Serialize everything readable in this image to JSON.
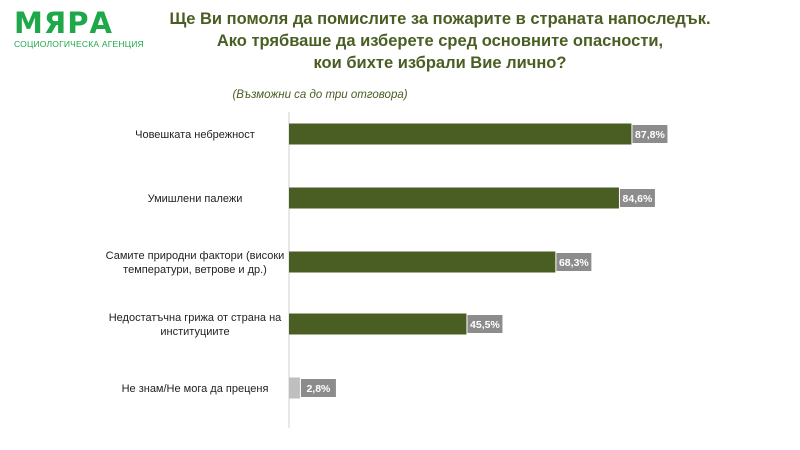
{
  "logo": {
    "word": "МЯРА",
    "tagline": "СОЦИОЛОГИЧЕСКА АГЕНЦИЯ"
  },
  "colors": {
    "bar": "#4a5e23",
    "bar_dont_know": "#bfbfbf",
    "value_box": "#8c8c8c",
    "title": "#4a5e23",
    "logo": "#1ea84a"
  },
  "chart_data": {
    "type": "bar",
    "orientation": "horizontal",
    "title": "Ще Ви помоля да помислите за пожарите в страната напоследък. Ако трябваше да изберете сред основните опасности, кои бихте избрали Вие лично?",
    "title_lines": [
      "Ще Ви помоля да помислите за пожарите в страната напоследък.",
      "Ако трябваше да изберете сред основните опасности,",
      "кои бихте избрали Вие лично?"
    ],
    "subtitle": "(Възможни са до три отговора)",
    "xlabel": "",
    "ylabel": "",
    "xlim": [
      0,
      100
    ],
    "grid": false,
    "legend": "none",
    "categories": [
      "Човешката небрежност",
      "Умишлени палежи",
      "Самите природни фактори (високи температури, ветрове и др.)",
      "Недостатъчна грижа от страна на институциите",
      "Не знам/Не мога да преценя"
    ],
    "category_lines": [
      [
        "Човешката небрежност"
      ],
      [
        "Умишлени палежи"
      ],
      [
        "Самите природни фактори (високи",
        "температури, ветрове и др.)"
      ],
      [
        "Недостатъчна грижа от страна на",
        "институциите"
      ],
      [
        "Не знам/Не мога да преценя"
      ]
    ],
    "values": [
      87.8,
      84.6,
      68.3,
      45.5,
      2.8
    ],
    "value_labels": [
      "87,8%",
      "84,6%",
      "68,3%",
      "45,5%",
      "2,8%"
    ]
  }
}
